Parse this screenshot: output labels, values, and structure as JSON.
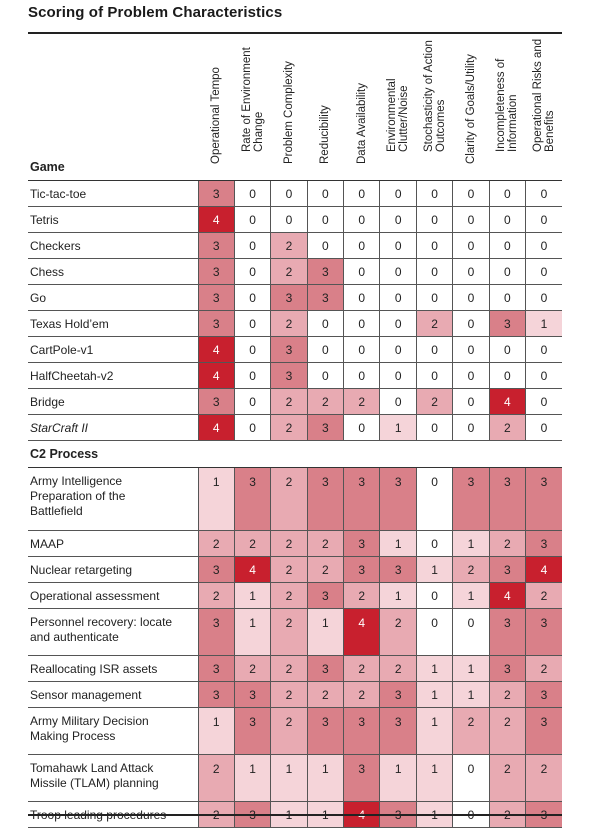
{
  "title": "Scoring of Problem Characteristics",
  "columns": [
    "Operational Tempo",
    "Rate of Environment\nChange",
    "Problem Complexity",
    "Reducibility",
    "Data Availability",
    "Environmental\nClutter/Noise",
    "Stochasticity of Action\nOutcomes",
    "Clarity of Goals/Utility",
    "Incompleteness of\nInformation",
    "Operational Risks and\nBenefits"
  ],
  "game_header": "Game",
  "games": [
    {
      "name": "Tic-tac-toe",
      "italic": false,
      "scores": [
        3,
        0,
        0,
        0,
        0,
        0,
        0,
        0,
        0,
        0
      ]
    },
    {
      "name": "Tetris",
      "italic": false,
      "scores": [
        4,
        0,
        0,
        0,
        0,
        0,
        0,
        0,
        0,
        0
      ]
    },
    {
      "name": "Checkers",
      "italic": false,
      "scores": [
        3,
        0,
        2,
        0,
        0,
        0,
        0,
        0,
        0,
        0
      ]
    },
    {
      "name": "Chess",
      "italic": false,
      "scores": [
        3,
        0,
        2,
        3,
        0,
        0,
        0,
        0,
        0,
        0
      ]
    },
    {
      "name": "Go",
      "italic": false,
      "scores": [
        3,
        0,
        3,
        3,
        0,
        0,
        0,
        0,
        0,
        0
      ]
    },
    {
      "name": "Texas Hold’em",
      "italic": false,
      "scores": [
        3,
        0,
        2,
        0,
        0,
        0,
        2,
        0,
        3,
        1
      ]
    },
    {
      "name": "CartPole-v1",
      "italic": false,
      "scores": [
        4,
        0,
        3,
        0,
        0,
        0,
        0,
        0,
        0,
        0
      ]
    },
    {
      "name": "HalfCheetah-v2",
      "italic": false,
      "scores": [
        4,
        0,
        3,
        0,
        0,
        0,
        0,
        0,
        0,
        0
      ]
    },
    {
      "name": "Bridge",
      "italic": false,
      "scores": [
        3,
        0,
        2,
        2,
        2,
        0,
        2,
        0,
        4,
        0
      ]
    },
    {
      "name": "StarCraft II",
      "italic": true,
      "scores": [
        4,
        0,
        2,
        3,
        0,
        1,
        0,
        0,
        2,
        0
      ]
    }
  ],
  "c2_header": "C2 Process",
  "c2": [
    {
      "name": "Army Intelligence\nPreparation of the\nBattlefield",
      "lines": 3,
      "scores": [
        1,
        3,
        2,
        3,
        3,
        3,
        0,
        3,
        3,
        3
      ]
    },
    {
      "name": "MAAP",
      "lines": 1,
      "scores": [
        2,
        2,
        2,
        2,
        3,
        1,
        0,
        1,
        2,
        3
      ]
    },
    {
      "name": "Nuclear retargeting",
      "lines": 1,
      "scores": [
        3,
        4,
        2,
        2,
        3,
        3,
        1,
        2,
        3,
        4
      ]
    },
    {
      "name": "Operational assessment",
      "lines": 1,
      "scores": [
        2,
        1,
        2,
        3,
        2,
        1,
        0,
        1,
        4,
        2
      ]
    },
    {
      "name": "Personnel recovery: locate\nand authenticate",
      "lines": 2,
      "scores": [
        3,
        1,
        2,
        1,
        4,
        2,
        0,
        0,
        3,
        3
      ]
    },
    {
      "name": "Reallocating ISR assets",
      "lines": 1,
      "scores": [
        3,
        2,
        2,
        3,
        2,
        2,
        1,
        1,
        3,
        2
      ]
    },
    {
      "name": "Sensor management",
      "lines": 1,
      "scores": [
        3,
        3,
        2,
        2,
        2,
        3,
        1,
        1,
        2,
        3
      ]
    },
    {
      "name": "Army Military Decision\nMaking Process",
      "lines": 2,
      "scores": [
        1,
        3,
        2,
        3,
        3,
        3,
        1,
        2,
        2,
        3
      ]
    },
    {
      "name": "Tomahawk Land Attack\nMissile (TLAM) planning",
      "lines": 2,
      "scores": [
        2,
        1,
        1,
        1,
        3,
        1,
        1,
        0,
        2,
        2
      ]
    },
    {
      "name": "Troop leading procedures",
      "lines": 1,
      "scores": [
        2,
        3,
        1,
        1,
        4,
        3,
        1,
        0,
        2,
        3
      ]
    }
  ]
}
